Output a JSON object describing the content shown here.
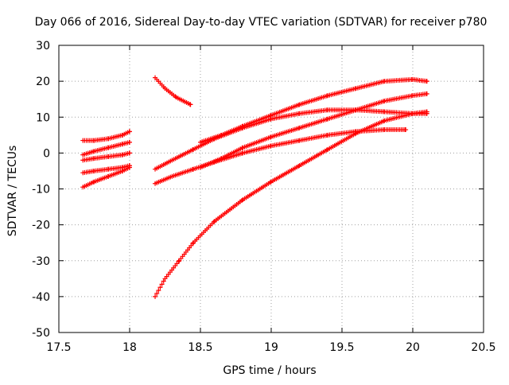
{
  "chart_data": {
    "type": "scatter",
    "title": "Day 066 of 2016, Sidereal Day-to-day VTEC variation (SDTVAR) for receiver p780",
    "xlabel": "GPS time / hours",
    "ylabel": "SDTVAR / TECUs",
    "xlim": [
      17.5,
      20.5
    ],
    "ylim": [
      -50,
      30
    ],
    "xticks": [
      17.5,
      18,
      18.5,
      19,
      19.5,
      20,
      20.5
    ],
    "xtick_labels": [
      "17.5",
      "18",
      "18.5",
      "19",
      "19.5",
      "20",
      "20.5"
    ],
    "yticks": [
      -50,
      -40,
      -30,
      -20,
      -10,
      0,
      10,
      20,
      30
    ],
    "ytick_labels": [
      "-50",
      "-40",
      "-30",
      "-20",
      "-10",
      "0",
      "10",
      "20",
      "30"
    ],
    "grid": true,
    "marker": "+",
    "color": "#ff0000",
    "series": [
      {
        "x": [
          17.67,
          17.75,
          17.85,
          17.95,
          18.0
        ],
        "y": [
          3.5,
          3.5,
          4.0,
          5.0,
          6.0
        ]
      },
      {
        "x": [
          17.67,
          17.75,
          17.85,
          17.95,
          18.0
        ],
        "y": [
          -0.5,
          0.5,
          1.5,
          2.5,
          3.0
        ]
      },
      {
        "x": [
          17.67,
          17.75,
          17.85,
          17.95,
          18.0
        ],
        "y": [
          -2.0,
          -1.5,
          -1.0,
          -0.5,
          0.0
        ]
      },
      {
        "x": [
          17.67,
          17.75,
          17.85,
          17.95,
          18.0
        ],
        "y": [
          -5.5,
          -5.0,
          -4.5,
          -4.0,
          -3.5
        ]
      },
      {
        "x": [
          17.67,
          17.75,
          17.85,
          17.95,
          18.0
        ],
        "y": [
          -9.5,
          -8.0,
          -6.5,
          -5.0,
          -4.0
        ]
      },
      {
        "x": [
          18.18,
          18.25,
          18.33,
          18.43
        ],
        "y": [
          21.0,
          18.0,
          15.5,
          13.5
        ]
      },
      {
        "x": [
          18.18,
          18.3,
          18.45,
          18.6,
          18.8,
          19.0,
          19.2,
          19.4,
          19.6,
          19.8,
          20.0,
          20.1
        ],
        "y": [
          -4.5,
          -2.0,
          1.0,
          4.0,
          7.0,
          9.5,
          11.0,
          12.0,
          12.0,
          11.5,
          11.0,
          11.0
        ]
      },
      {
        "x": [
          18.18,
          18.3,
          18.45,
          18.6,
          18.8,
          19.0,
          19.2,
          19.4,
          19.6,
          19.8,
          19.95
        ],
        "y": [
          -8.5,
          -6.5,
          -4.5,
          -2.5,
          0.0,
          2.0,
          3.5,
          5.0,
          6.0,
          6.5,
          6.5
        ]
      },
      {
        "x": [
          18.5,
          18.65,
          18.8,
          19.0,
          19.2,
          19.4,
          19.6,
          19.8,
          20.0,
          20.1
        ],
        "y": [
          3.0,
          5.0,
          7.5,
          10.5,
          13.5,
          16.0,
          18.0,
          20.0,
          20.5,
          20.0
        ]
      },
      {
        "x": [
          18.5,
          18.65,
          18.8,
          19.0,
          19.2,
          19.4,
          19.6,
          19.8,
          20.0,
          20.1
        ],
        "y": [
          -4.0,
          -1.5,
          1.5,
          4.5,
          7.0,
          9.5,
          12.0,
          14.5,
          16.0,
          16.5
        ]
      },
      {
        "x": [
          18.18,
          18.25,
          18.35,
          18.45,
          18.6,
          18.8,
          19.0,
          19.2,
          19.4,
          19.6,
          19.8,
          20.0,
          20.1
        ],
        "y": [
          -40.0,
          -35.0,
          -30.0,
          -25.0,
          -19.0,
          -13.0,
          -8.0,
          -3.5,
          1.0,
          5.5,
          9.0,
          11.0,
          11.5
        ]
      }
    ]
  }
}
